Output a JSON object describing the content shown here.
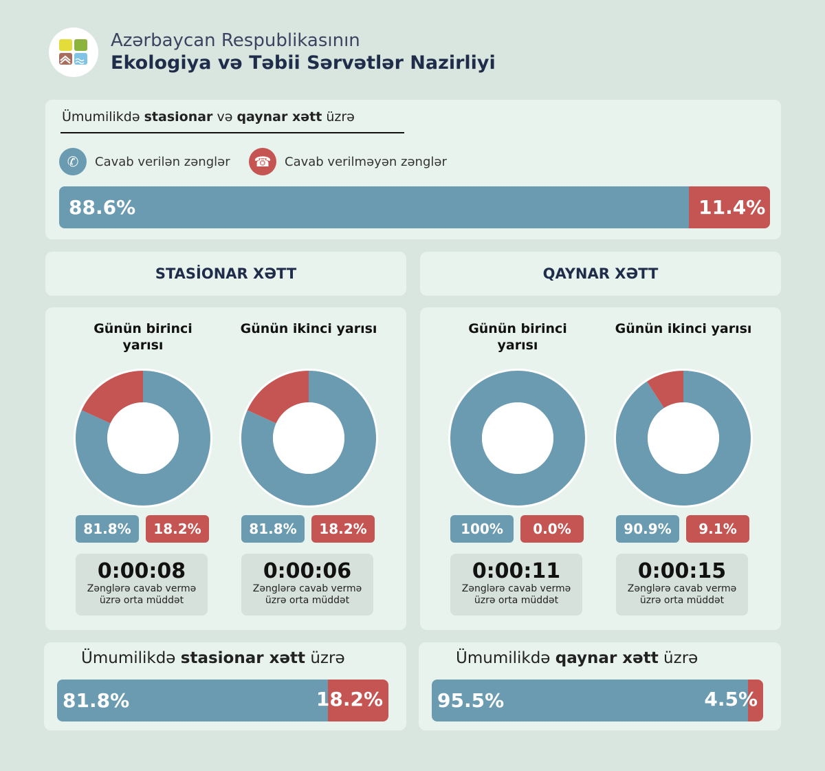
{
  "header": {
    "line1": "Azərbaycan Respublikasının",
    "line2": "Ekologiya və Təbii Sərvətlər Nazirliyi",
    "logo": "ministry-logo"
  },
  "overall": {
    "title_pre": "Ümumilikdə ",
    "title_b1": "stasionar",
    "title_mid": " və ",
    "title_b2": "qaynar xətt",
    "title_post": " üzrə",
    "legend_answered": "Cavab verilən zənglər",
    "legend_missed": "Cavab verilməyən zənglər",
    "answered": 88.6,
    "missed": 11.4,
    "answered_label": "88.6%",
    "missed_label": "11.4%"
  },
  "sections": [
    {
      "title": "STASİONAR XƏTT",
      "halves": [
        {
          "title": "Günün birinci yarısı",
          "answered": 81.8,
          "missed": 18.2,
          "answered_label": "81.8%",
          "missed_label": "18.2%",
          "time": "0:00:08",
          "time_label": "Zənglərə cavab vermə üzrə orta müddət"
        },
        {
          "title": "Günün ikinci yarısı",
          "answered": 81.8,
          "missed": 18.2,
          "answered_label": "81.8%",
          "missed_label": "18.2%",
          "time": "0:00:06",
          "time_label": "Zənglərə cavab vermə üzrə orta müddət"
        }
      ],
      "total": {
        "title_pre": "Ümumilikdə ",
        "title_b": "stasionar xətt",
        "title_post": " üzrə",
        "answered": 81.8,
        "missed": 18.2,
        "answered_label": "81.8%",
        "missed_label": "18.2%"
      }
    },
    {
      "title": "QAYNAR XƏTT",
      "halves": [
        {
          "title": "Günün birinci yarısı",
          "answered": 100,
          "missed": 0,
          "answered_label": "100%",
          "missed_label": "0.0%",
          "time": "0:00:11",
          "time_label": "Zənglərə cavab vermə üzrə orta müddət"
        },
        {
          "title": "Günün ikinci yarısı",
          "answered": 90.9,
          "missed": 9.1,
          "answered_label": "90.9%",
          "missed_label": "9.1%",
          "time": "0:00:15",
          "time_label": "Zənglərə cavab vermə üzrə orta müddət"
        }
      ],
      "total": {
        "title_pre": "Ümumilikdə ",
        "title_b": "qaynar xətt",
        "title_post": " üzrə",
        "answered": 95.5,
        "missed": 4.5,
        "answered_label": "95.5%",
        "missed_label": "4.5%"
      }
    }
  ],
  "colors": {
    "answered": "#6a9bb0",
    "missed": "#c55552"
  }
}
